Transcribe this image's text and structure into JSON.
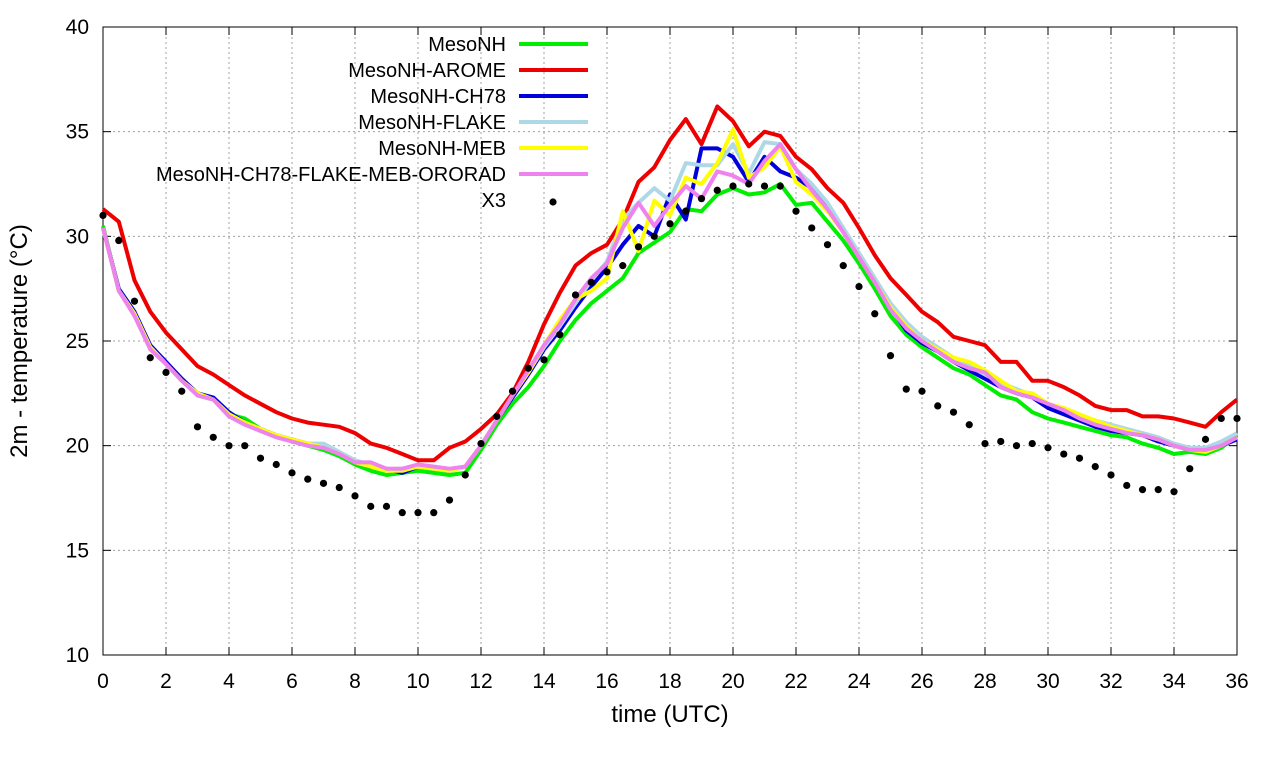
{
  "chart_data": {
    "type": "line",
    "xlabel": "time (UTC)",
    "ylabel": "2m - temperature (°C)",
    "xlim": [
      0,
      36
    ],
    "ylim": [
      10,
      40
    ],
    "xticks": [
      0,
      2,
      4,
      6,
      8,
      10,
      12,
      14,
      16,
      18,
      20,
      22,
      24,
      26,
      28,
      30,
      32,
      34,
      36
    ],
    "yticks": [
      10,
      15,
      20,
      25,
      30,
      35,
      40
    ],
    "grid": true,
    "legend_position": "top-center",
    "series": [
      {
        "name": "MesoNH",
        "color": "#00ee00",
        "style": "line",
        "x": [
          0,
          0.5,
          1,
          1.5,
          2,
          2.5,
          3,
          3.5,
          4,
          4.5,
          5,
          5.5,
          6,
          6.5,
          7,
          7.5,
          8,
          8.5,
          9,
          9.5,
          10,
          10.5,
          11,
          11.5,
          12,
          12.5,
          13,
          13.5,
          14,
          14.5,
          15,
          15.5,
          16,
          16.5,
          17,
          17.5,
          18,
          18.5,
          19,
          19.5,
          20,
          20.5,
          21,
          21.5,
          22,
          22.5,
          23,
          23.5,
          24,
          24.5,
          25,
          25.5,
          26,
          26.5,
          27,
          27.5,
          28,
          28.5,
          29,
          29.5,
          30,
          30.5,
          31,
          31.5,
          32,
          32.5,
          33,
          33.5,
          34,
          34.5,
          35,
          35.5,
          36
        ],
        "y": [
          30.5,
          27.4,
          26.3,
          24.7,
          23.9,
          23.2,
          22.4,
          22.2,
          21.5,
          21.3,
          20.8,
          20.5,
          20.2,
          20.0,
          19.8,
          19.5,
          19.1,
          18.8,
          18.6,
          18.7,
          18.8,
          18.7,
          18.6,
          18.7,
          19.8,
          21.0,
          22.0,
          22.8,
          23.8,
          25.0,
          26.0,
          26.8,
          27.4,
          28.0,
          29.2,
          29.7,
          30.2,
          31.3,
          31.2,
          32.0,
          32.3,
          32.0,
          32.1,
          32.5,
          31.5,
          31.6,
          30.7,
          29.8,
          28.7,
          27.5,
          26.2,
          25.3,
          24.7,
          24.2,
          23.7,
          23.4,
          22.9,
          22.4,
          22.2,
          21.6,
          21.3,
          21.1,
          20.9,
          20.7,
          20.5,
          20.4,
          20.1,
          19.9,
          19.6,
          19.7,
          19.6,
          19.9,
          20.5
        ]
      },
      {
        "name": "MesoNH-AROME",
        "color": "#ee0000",
        "style": "line",
        "x": [
          0,
          0.5,
          1,
          1.5,
          2,
          2.5,
          3,
          3.5,
          4,
          4.5,
          5,
          5.5,
          6,
          6.5,
          7,
          7.5,
          8,
          8.5,
          9,
          9.5,
          10,
          10.5,
          11,
          11.5,
          12,
          12.5,
          13,
          13.5,
          14,
          14.5,
          15,
          15.5,
          16,
          16.5,
          17,
          17.5,
          18,
          18.5,
          19,
          19.5,
          20,
          20.5,
          21,
          21.5,
          22,
          22.5,
          23,
          23.5,
          24,
          24.5,
          25,
          25.5,
          26,
          26.5,
          27,
          27.5,
          28,
          28.5,
          29,
          29.5,
          30,
          30.5,
          31,
          31.5,
          32,
          32.5,
          33,
          33.5,
          34,
          34.5,
          35,
          35.5,
          36
        ],
        "y": [
          31.3,
          30.7,
          27.9,
          26.4,
          25.4,
          24.6,
          23.8,
          23.4,
          22.9,
          22.4,
          22.0,
          21.6,
          21.3,
          21.1,
          21.0,
          20.9,
          20.6,
          20.1,
          19.9,
          19.6,
          19.3,
          19.3,
          19.9,
          20.2,
          20.8,
          21.5,
          22.5,
          24.0,
          25.8,
          27.3,
          28.6,
          29.2,
          29.6,
          30.8,
          32.6,
          33.3,
          34.6,
          35.6,
          34.4,
          36.2,
          35.5,
          34.3,
          35.0,
          34.8,
          33.8,
          33.2,
          32.3,
          31.6,
          30.4,
          29.1,
          28.0,
          27.2,
          26.4,
          25.9,
          25.2,
          25.0,
          24.8,
          24.0,
          24.0,
          23.1,
          23.1,
          22.8,
          22.4,
          21.9,
          21.7,
          21.7,
          21.4,
          21.4,
          21.3,
          21.1,
          20.9,
          21.6,
          22.2
        ]
      },
      {
        "name": "MesoNH-CH78",
        "color": "#0000dd",
        "style": "line",
        "x": [
          0,
          0.5,
          1,
          1.5,
          2,
          2.5,
          3,
          3.5,
          4,
          4.5,
          5,
          5.5,
          6,
          6.5,
          7,
          7.5,
          8,
          8.5,
          9,
          9.5,
          10,
          10.5,
          11,
          11.5,
          12,
          12.5,
          13,
          13.5,
          14,
          14.5,
          15,
          15.5,
          16,
          16.5,
          17,
          17.5,
          18,
          18.5,
          19,
          19.5,
          20,
          20.5,
          21,
          21.5,
          22,
          22.5,
          23,
          23.5,
          24,
          24.5,
          25,
          25.5,
          26,
          26.5,
          27,
          27.5,
          28,
          28.5,
          29,
          29.5,
          30,
          30.5,
          31,
          31.5,
          32,
          32.5,
          33,
          33.5,
          34,
          34.5,
          35,
          35.5,
          36
        ],
        "y": [
          30.4,
          27.5,
          26.4,
          24.8,
          24.0,
          23.2,
          22.5,
          22.3,
          21.6,
          21.1,
          20.8,
          20.5,
          20.3,
          20.1,
          19.9,
          19.6,
          19.2,
          19.0,
          18.9,
          18.7,
          19.0,
          18.9,
          18.8,
          19.0,
          20.0,
          21.2,
          22.3,
          23.4,
          24.6,
          25.5,
          26.6,
          27.6,
          28.5,
          29.6,
          30.5,
          30.0,
          32.0,
          30.8,
          34.2,
          34.2,
          33.8,
          32.6,
          33.8,
          33.1,
          32.8,
          32.3,
          31.5,
          30.2,
          29.0,
          27.8,
          26.6,
          25.5,
          24.9,
          24.5,
          24.0,
          23.6,
          23.2,
          22.8,
          22.5,
          22.3,
          21.8,
          21.5,
          21.2,
          20.9,
          20.7,
          20.6,
          20.5,
          20.2,
          20.0,
          19.8,
          19.8,
          20.0,
          20.3
        ]
      },
      {
        "name": "MesoNH-FLAKE",
        "color": "#add8e6",
        "style": "line",
        "x": [
          0,
          0.5,
          1,
          1.5,
          2,
          2.5,
          3,
          3.5,
          4,
          4.5,
          5,
          5.5,
          6,
          6.5,
          7,
          7.5,
          8,
          8.5,
          9,
          9.5,
          10,
          10.5,
          11,
          11.5,
          12,
          12.5,
          13,
          13.5,
          14,
          14.5,
          15,
          15.5,
          16,
          16.5,
          17,
          17.5,
          18,
          18.5,
          19,
          19.5,
          20,
          20.5,
          21,
          21.5,
          22,
          22.5,
          23,
          23.5,
          24,
          24.5,
          25,
          25.5,
          26,
          26.5,
          27,
          27.5,
          28,
          28.5,
          29,
          29.5,
          30,
          30.5,
          31,
          31.5,
          32,
          32.5,
          33,
          33.5,
          34,
          34.5,
          35,
          35.5,
          36
        ],
        "y": [
          30.4,
          27.4,
          26.3,
          24.7,
          23.9,
          23.1,
          22.5,
          22.2,
          21.5,
          21.1,
          20.8,
          20.5,
          20.3,
          20.1,
          20.1,
          19.7,
          19.3,
          19.1,
          18.9,
          18.9,
          19.0,
          18.9,
          18.8,
          19.0,
          20.0,
          21.2,
          22.4,
          23.5,
          24.7,
          25.7,
          26.8,
          27.9,
          28.8,
          30.8,
          31.6,
          32.3,
          31.7,
          33.5,
          33.4,
          33.4,
          34.4,
          33.0,
          34.5,
          34.4,
          33.2,
          32.5,
          31.6,
          30.4,
          29.2,
          28.0,
          26.8,
          25.9,
          25.2,
          24.7,
          24.2,
          23.8,
          23.4,
          23.0,
          22.7,
          22.4,
          22.0,
          21.7,
          21.4,
          21.2,
          21.0,
          20.8,
          20.6,
          20.4,
          20.1,
          19.9,
          19.9,
          20.2,
          20.6
        ]
      },
      {
        "name": "MesoNH-MEB",
        "color": "#ffff00",
        "style": "line",
        "x": [
          0,
          0.5,
          1,
          1.5,
          2,
          2.5,
          3,
          3.5,
          4,
          4.5,
          5,
          5.5,
          6,
          6.5,
          7,
          7.5,
          8,
          8.5,
          9,
          9.5,
          10,
          10.5,
          11,
          11.5,
          12,
          12.5,
          13,
          13.5,
          14,
          14.5,
          15,
          15.5,
          16,
          16.5,
          17,
          17.5,
          18,
          18.5,
          19,
          19.5,
          20,
          20.5,
          21,
          21.5,
          22,
          22.5,
          23,
          23.5,
          24,
          24.5,
          25,
          25.5,
          26,
          26.5,
          27,
          27.5,
          28,
          28.5,
          29,
          29.5,
          30,
          30.5,
          31,
          31.5,
          32,
          32.5,
          33,
          33.5,
          34,
          34.5,
          35,
          35.5,
          36
        ],
        "y": [
          30.4,
          27.4,
          26.3,
          24.7,
          23.9,
          23.1,
          22.5,
          22.2,
          21.5,
          21.1,
          20.8,
          20.5,
          20.3,
          20.1,
          19.9,
          19.6,
          19.2,
          19.0,
          18.8,
          18.8,
          19.0,
          18.9,
          18.8,
          19.0,
          20.0,
          21.2,
          22.4,
          23.5,
          24.8,
          26.0,
          27.0,
          27.4,
          28.0,
          31.2,
          29.3,
          31.7,
          31.0,
          32.8,
          32.5,
          33.5,
          35.1,
          32.8,
          33.3,
          34.3,
          32.6,
          32.0,
          31.2,
          30.2,
          29.0,
          27.8,
          26.6,
          25.7,
          25.0,
          24.6,
          24.2,
          24.0,
          23.6,
          23.1,
          22.6,
          22.5,
          22.0,
          21.8,
          21.5,
          21.2,
          20.9,
          20.7,
          20.5,
          20.3,
          20.0,
          19.8,
          19.7,
          20.0,
          20.4
        ]
      },
      {
        "name": "MesoNH-CH78-FLAKE-MEB-ORORAD",
        "color": "#ee82ee",
        "style": "line",
        "x": [
          0,
          0.5,
          1,
          1.5,
          2,
          2.5,
          3,
          3.5,
          4,
          4.5,
          5,
          5.5,
          6,
          6.5,
          7,
          7.5,
          8,
          8.5,
          9,
          9.5,
          10,
          10.5,
          11,
          11.5,
          12,
          12.5,
          13,
          13.5,
          14,
          14.5,
          15,
          15.5,
          16,
          16.5,
          17,
          17.5,
          18,
          18.5,
          19,
          19.5,
          20,
          20.5,
          21,
          21.5,
          22,
          22.5,
          23,
          23.5,
          24,
          24.5,
          25,
          25.5,
          26,
          26.5,
          27,
          27.5,
          28,
          28.5,
          29,
          29.5,
          30,
          30.5,
          31,
          31.5,
          32,
          32.5,
          33,
          33.5,
          34,
          34.5,
          35,
          35.5,
          36
        ],
        "y": [
          30.4,
          27.4,
          26.2,
          24.6,
          23.9,
          23.1,
          22.4,
          22.2,
          21.4,
          21.0,
          20.7,
          20.4,
          20.2,
          20.0,
          19.9,
          19.6,
          19.2,
          19.2,
          18.9,
          18.9,
          19.1,
          19.0,
          18.9,
          19.0,
          20.0,
          21.2,
          22.4,
          23.6,
          24.8,
          25.8,
          27.0,
          28.0,
          28.7,
          30.4,
          31.6,
          30.5,
          31.5,
          32.4,
          31.8,
          33.1,
          32.9,
          32.5,
          33.6,
          34.4,
          33.2,
          32.2,
          31.3,
          30.2,
          29.0,
          27.8,
          26.5,
          25.6,
          25.0,
          24.5,
          24.0,
          23.7,
          23.5,
          22.8,
          22.5,
          22.3,
          22.0,
          21.7,
          21.3,
          21.0,
          20.8,
          20.6,
          20.5,
          20.3,
          20.0,
          19.8,
          19.8,
          20.0,
          20.4
        ]
      },
      {
        "name": "X3",
        "color": "#000000",
        "style": "points",
        "x": [
          0,
          0.5,
          1,
          1.5,
          2,
          2.5,
          3,
          3.5,
          4,
          4.5,
          5,
          5.5,
          6,
          6.5,
          7,
          7.5,
          8,
          8.5,
          9,
          9.5,
          10,
          10.5,
          11,
          11.5,
          12,
          12.5,
          13,
          13.5,
          14,
          14.5,
          15,
          15.5,
          16,
          16.5,
          17,
          17.5,
          18,
          18.5,
          19,
          19.5,
          20,
          20.5,
          21,
          21.5,
          22,
          22.5,
          23,
          23.5,
          24,
          24.5,
          25,
          25.5,
          26,
          26.5,
          27,
          27.5,
          28,
          28.5,
          29,
          29.5,
          30,
          30.5,
          31,
          31.5,
          32,
          32.5,
          33,
          33.5,
          34,
          34.5,
          35,
          35.5,
          36
        ],
        "y": [
          31.0,
          29.8,
          26.9,
          24.2,
          23.5,
          22.6,
          20.9,
          20.4,
          20.0,
          20.0,
          19.4,
          19.1,
          18.7,
          18.4,
          18.2,
          18.0,
          17.6,
          17.1,
          17.1,
          16.8,
          16.8,
          16.8,
          17.4,
          18.6,
          20.1,
          21.4,
          22.6,
          23.7,
          24.1,
          25.3,
          27.2,
          27.8,
          28.3,
          28.6,
          29.5,
          30.0,
          30.6,
          31.2,
          31.8,
          32.2,
          32.4,
          32.5,
          32.4,
          32.4,
          31.2,
          30.4,
          29.6,
          28.6,
          27.6,
          26.3,
          24.3,
          22.7,
          22.6,
          21.9,
          21.6,
          21.0,
          20.1,
          20.2,
          20.0,
          20.1,
          19.9,
          19.6,
          19.4,
          19.0,
          18.6,
          18.1,
          17.9,
          17.9,
          17.8,
          18.9,
          20.3,
          21.3,
          21.3
        ]
      }
    ]
  }
}
